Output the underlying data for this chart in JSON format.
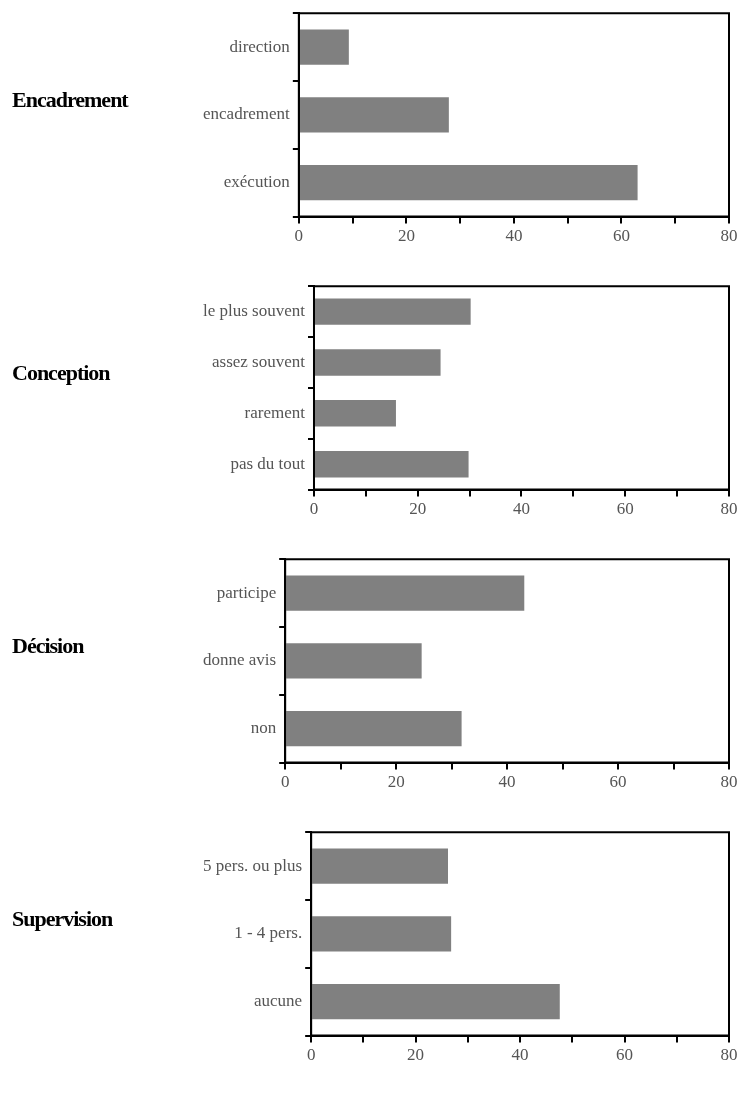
{
  "chart_data": [
    {
      "type": "bar",
      "orientation": "horizontal",
      "title": "Encadrement",
      "categories": [
        "direction",
        "encadrement",
        "exécution"
      ],
      "values": [
        9.3,
        27.9,
        63
      ],
      "color": "#808080",
      "xlim": [
        0,
        80
      ],
      "xticks": [
        0,
        {
          "value": 10,
          "label": null
        },
        20,
        {
          "value": 30,
          "label": null
        },
        40,
        {
          "value": 50,
          "label": null
        },
        60,
        {
          "value": 70,
          "label": null
        },
        80
      ]
    },
    {
      "type": "bar",
      "orientation": "horizontal",
      "title": "Conception",
      "categories": [
        "le plus souvent",
        "assez souvent",
        "rarement",
        "pas du tout"
      ],
      "values": [
        30.2,
        24.4,
        15.8,
        29.8
      ],
      "color": "#808080",
      "xlim": [
        0,
        80
      ],
      "xticks": [
        0,
        {
          "value": 10,
          "label": null
        },
        20,
        {
          "value": 30,
          "label": null
        },
        40,
        {
          "value": 50,
          "label": null
        },
        60,
        {
          "value": 70,
          "label": null
        },
        80
      ]
    },
    {
      "type": "bar",
      "orientation": "horizontal",
      "title": "Décision",
      "categories": [
        "participe",
        "donne avis",
        "non"
      ],
      "values": [
        43.1,
        24.6,
        31.8
      ],
      "color": "#808080",
      "xlim": [
        0,
        80
      ],
      "xticks": [
        0,
        {
          "value": 10,
          "label": null
        },
        20,
        {
          "value": 30,
          "label": null
        },
        40,
        {
          "value": 50,
          "label": null
        },
        60,
        {
          "value": 70,
          "label": null
        },
        80
      ]
    },
    {
      "type": "bar",
      "orientation": "horizontal",
      "title": "Supervision",
      "categories": [
        "5 pers. ou plus",
        "1 - 4 pers.",
        "aucune"
      ],
      "values": [
        26.2,
        26.8,
        47.6
      ],
      "color": "#808080",
      "xlim": [
        0,
        80
      ],
      "xticks": [
        0,
        {
          "value": 10,
          "label": null
        },
        20,
        {
          "value": 30,
          "label": null
        },
        40,
        {
          "value": 50,
          "label": null
        },
        60,
        {
          "value": 70,
          "label": null
        },
        80
      ]
    }
  ]
}
